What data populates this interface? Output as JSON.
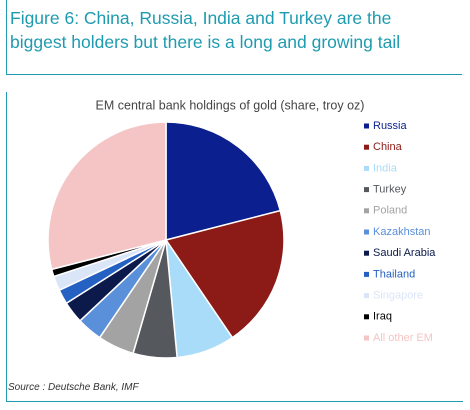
{
  "header": {
    "title": "Figure 6: China, Russia, India and Turkey are the biggest holders but there is a long and growing tail"
  },
  "chart_data": {
    "type": "pie",
    "title": "EM central bank holdings of gold (share, troy oz)",
    "categories": [
      "Russia",
      "China",
      "India",
      "Turkey",
      "Poland",
      "Kazakhstan",
      "Saudi Arabia",
      "Thailand",
      "Singapore",
      "Iraq",
      "All other EM"
    ],
    "values": [
      21,
      19.5,
      8,
      6,
      5,
      3.5,
      3,
      2,
      2,
      1,
      29
    ],
    "colors": [
      "#0b1f8f",
      "#8c1a17",
      "#a9dcf8",
      "#55595e",
      "#a3a3a3",
      "#5a8fda",
      "#0b1a4a",
      "#2461c2",
      "#dbe5f8",
      "#000000",
      "#f4c5c4"
    ],
    "legend": "right"
  },
  "footer": {
    "source": "Source : Deutsche Bank, IMF"
  }
}
